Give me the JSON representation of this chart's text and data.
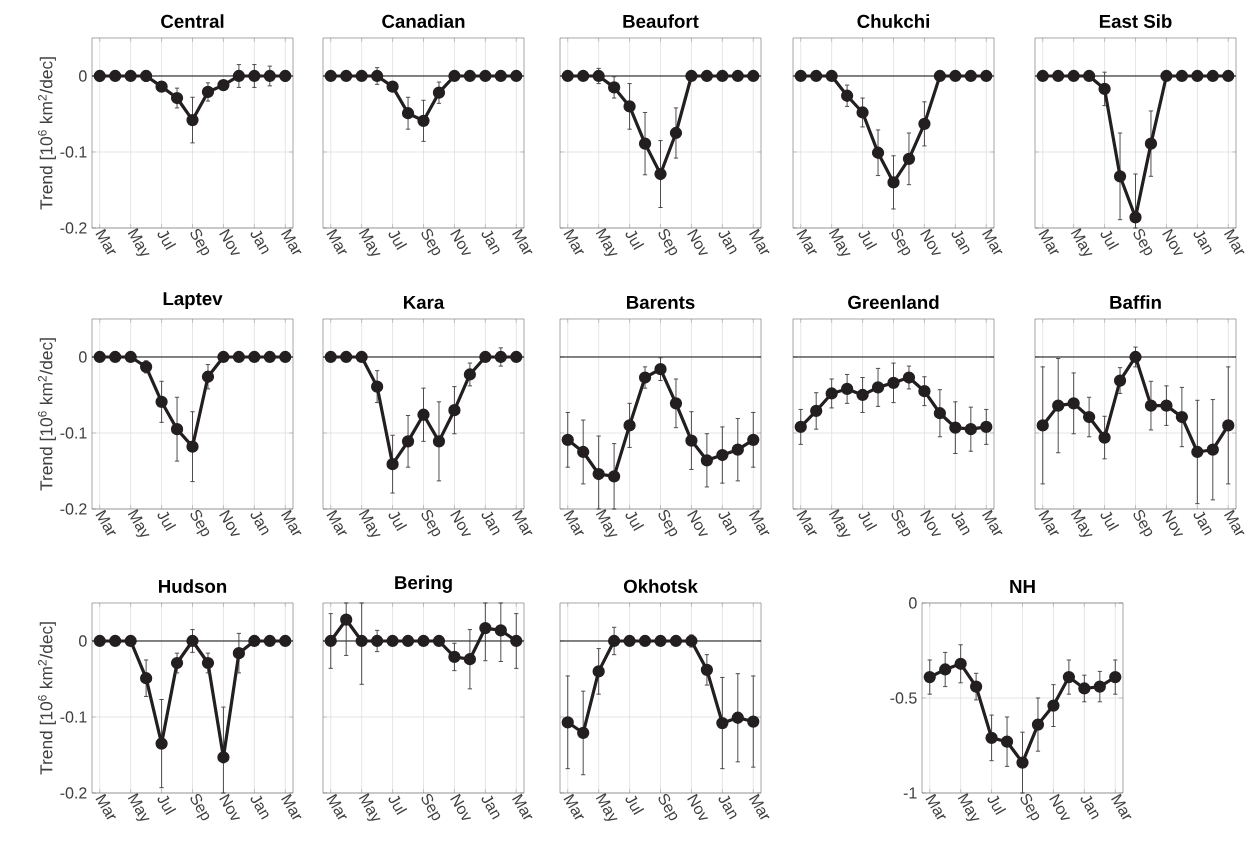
{
  "chart_data": [
    {
      "type": "line",
      "title": "Central",
      "ylabel": "Trend [10$^{6}$ km$^{2}$/dec]",
      "categories": [
        "Mar",
        null,
        "May",
        null,
        "Jul",
        null,
        "Sep",
        null,
        "Nov",
        null,
        "Jan",
        null,
        "Mar"
      ],
      "ylim": [
        -0.2,
        0.05
      ],
      "yticks": [
        -0.2,
        -0.1,
        0
      ],
      "grid": true,
      "marker": "circle",
      "line_style": "solid",
      "ref_lines": [
        {
          "axis": "y",
          "value": 0,
          "color": "#000000"
        }
      ],
      "series": [
        {
          "color": "#231f20",
          "values": [
            0,
            0,
            0,
            0,
            -0.014,
            -0.029,
            -0.058,
            -0.021,
            -0.012,
            0,
            0,
            0,
            0
          ],
          "errors": [
            0.007,
            null,
            null,
            0.007,
            null,
            0.013,
            0.03,
            0.012,
            null,
            0.015,
            0.015,
            0.013,
            0.007
          ]
        }
      ]
    },
    {
      "type": "line",
      "title": "Canadian",
      "categories": [
        "Mar",
        null,
        "May",
        null,
        "Jul",
        null,
        "Sep",
        null,
        "Nov",
        null,
        "Jan",
        null,
        "Mar"
      ],
      "ylim": [
        -0.2,
        0.05
      ],
      "yticks": [
        -0.2,
        -0.1,
        0
      ],
      "grid": true,
      "marker": "circle",
      "line_style": "solid",
      "tick_labels": "x",
      "ref_lines": [
        {
          "axis": "y",
          "value": 0,
          "color": "#000000"
        }
      ],
      "series": [
        {
          "color": "#231f20",
          "values": [
            0,
            0,
            0,
            0,
            -0.014,
            -0.049,
            -0.059,
            -0.022,
            0,
            0,
            0,
            0,
            0
          ],
          "errors": [
            null,
            null,
            null,
            0.011,
            0.006,
            0.021,
            0.027,
            0.014,
            null,
            null,
            null,
            null,
            null
          ]
        }
      ]
    },
    {
      "type": "line",
      "title": "Beaufort",
      "categories": [
        "Mar",
        null,
        "May",
        null,
        "Jul",
        null,
        "Sep",
        null,
        "Nov",
        null,
        "Jan",
        null,
        "Mar"
      ],
      "ylim": [
        -0.2,
        0.05
      ],
      "yticks": [
        -0.2,
        -0.1,
        0
      ],
      "grid": true,
      "marker": "circle",
      "line_style": "solid",
      "tick_labels": "x",
      "ref_lines": [
        {
          "axis": "y",
          "value": 0,
          "color": "#000000"
        }
      ],
      "series": [
        {
          "color": "#231f20",
          "values": [
            0,
            0,
            0,
            -0.015,
            -0.04,
            -0.089,
            -0.129,
            -0.075,
            0,
            0,
            0,
            0,
            0
          ],
          "errors": [
            null,
            null,
            0.01,
            0.014,
            0.03,
            0.041,
            0.044,
            0.033,
            null,
            null,
            null,
            null,
            null
          ]
        }
      ]
    },
    {
      "type": "line",
      "title": "Chukchi",
      "categories": [
        "Mar",
        null,
        "May",
        null,
        "Jul",
        null,
        "Sep",
        null,
        "Nov",
        null,
        "Jan",
        null,
        "Mar"
      ],
      "ylim": [
        -0.2,
        0.05
      ],
      "yticks": [
        -0.2,
        -0.1,
        0
      ],
      "grid": true,
      "marker": "circle",
      "line_style": "solid",
      "tick_labels": "x",
      "ref_lines": [
        {
          "axis": "y",
          "value": 0,
          "color": "#000000"
        }
      ],
      "series": [
        {
          "color": "#231f20",
          "values": [
            0,
            0,
            0,
            -0.026,
            -0.048,
            -0.101,
            -0.14,
            -0.109,
            -0.063,
            0,
            0,
            0,
            0
          ],
          "errors": [
            null,
            null,
            null,
            0.014,
            0.019,
            0.03,
            0.035,
            0.034,
            0.029,
            null,
            null,
            null,
            null
          ]
        }
      ]
    },
    {
      "type": "line",
      "title": "East Sib",
      "categories": [
        "Mar",
        null,
        "May",
        null,
        "Jul",
        null,
        "Sep",
        null,
        "Nov",
        null,
        "Jan",
        null,
        "Mar"
      ],
      "ylim": [
        -0.2,
        0.05
      ],
      "yticks": [
        -0.2,
        -0.1,
        0
      ],
      "grid": true,
      "marker": "circle",
      "line_style": "solid",
      "tick_labels": "x",
      "ref_lines": [
        {
          "axis": "y",
          "value": 0,
          "color": "#000000"
        }
      ],
      "series": [
        {
          "color": "#231f20",
          "values": [
            0,
            0,
            0,
            0,
            -0.017,
            -0.132,
            -0.186,
            -0.089,
            0,
            0,
            0,
            0,
            0
          ],
          "errors": [
            null,
            null,
            null,
            0.006,
            0.022,
            0.057,
            [
              -0.2,
              -0.129
            ],
            0.043,
            null,
            null,
            null,
            null,
            null
          ]
        }
      ]
    },
    {
      "type": "line",
      "title": "Laptev",
      "ylabel": "Trend [10$^{6}$ km$^{2}$/dec]",
      "categories": [
        "Mar",
        null,
        "May",
        null,
        "Jul",
        null,
        "Sep",
        null,
        "Nov",
        null,
        "Jan",
        null,
        "Mar"
      ],
      "ylim": [
        -0.2,
        0.05
      ],
      "yticks": [
        -0.2,
        -0.1,
        0
      ],
      "grid": true,
      "marker": "circle",
      "line_style": "solid",
      "ref_lines": [
        {
          "axis": "y",
          "value": 0,
          "color": "#000000"
        }
      ],
      "series": [
        {
          "color": "#231f20",
          "values": [
            0,
            0,
            0,
            -0.013,
            -0.059,
            -0.095,
            -0.118,
            -0.026,
            0,
            0,
            0,
            0,
            0
          ],
          "errors": [
            null,
            null,
            null,
            0.008,
            0.027,
            0.042,
            0.046,
            0.016,
            null,
            null,
            null,
            null,
            null
          ]
        }
      ]
    },
    {
      "type": "line",
      "title": "Kara",
      "categories": [
        "Mar",
        null,
        "May",
        null,
        "Jul",
        null,
        "Sep",
        null,
        "Nov",
        null,
        "Jan",
        null,
        "Mar"
      ],
      "ylim": [
        -0.2,
        0.05
      ],
      "yticks": [
        -0.2,
        -0.1,
        0
      ],
      "grid": true,
      "marker": "circle",
      "line_style": "solid",
      "tick_labels": "x",
      "ref_lines": [
        {
          "axis": "y",
          "value": 0,
          "color": "#000000"
        }
      ],
      "series": [
        {
          "color": "#231f20",
          "values": [
            0,
            0,
            0,
            -0.039,
            -0.141,
            -0.111,
            -0.076,
            -0.111,
            -0.07,
            -0.023,
            0,
            0,
            0
          ],
          "errors": [
            null,
            null,
            null,
            0.021,
            0.038,
            0.034,
            0.035,
            0.052,
            0.031,
            0.015,
            null,
            0.012,
            null
          ]
        }
      ]
    },
    {
      "type": "line",
      "title": "Barents",
      "categories": [
        "Mar",
        null,
        "May",
        null,
        "Jul",
        null,
        "Sep",
        null,
        "Nov",
        null,
        "Jan",
        null,
        "Mar"
      ],
      "ylim": [
        -0.2,
        0.05
      ],
      "yticks": [
        -0.2,
        -0.1,
        0
      ],
      "grid": true,
      "marker": "circle",
      "line_style": "solid",
      "tick_labels": "x",
      "ref_lines": [
        {
          "axis": "y",
          "value": 0,
          "color": "#000000"
        }
      ],
      "series": [
        {
          "color": "#231f20",
          "values": [
            -0.109,
            -0.125,
            -0.154,
            -0.157,
            -0.09,
            -0.027,
            -0.016,
            -0.061,
            -0.11,
            -0.136,
            -0.129,
            -0.122,
            -0.109
          ],
          "errors": [
            0.036,
            0.042,
            [
              -0.2,
              -0.104
            ],
            0.043,
            0.029,
            0.014,
            0.015,
            0.032,
            0.038,
            0.035,
            0.037,
            0.041,
            0.036
          ]
        }
      ]
    },
    {
      "type": "line",
      "title": "Greenland",
      "categories": [
        "Mar",
        null,
        "May",
        null,
        "Jul",
        null,
        "Sep",
        null,
        "Nov",
        null,
        "Jan",
        null,
        "Mar"
      ],
      "ylim": [
        -0.2,
        0.05
      ],
      "yticks": [
        -0.2,
        -0.1,
        0
      ],
      "grid": true,
      "marker": "circle",
      "line_style": "solid",
      "tick_labels": "x",
      "ref_lines": [
        {
          "axis": "y",
          "value": 0,
          "color": "#000000"
        }
      ],
      "series": [
        {
          "color": "#231f20",
          "values": [
            -0.092,
            -0.071,
            -0.048,
            -0.042,
            -0.05,
            -0.04,
            -0.034,
            -0.027,
            -0.045,
            -0.074,
            -0.093,
            -0.095,
            -0.092
          ],
          "errors": [
            0.023,
            0.024,
            0.019,
            0.019,
            0.023,
            0.025,
            0.026,
            0.015,
            0.019,
            0.031,
            0.034,
            0.029,
            0.023
          ]
        }
      ]
    },
    {
      "type": "line",
      "title": "Baffin",
      "categories": [
        "Mar",
        null,
        "May",
        null,
        "Jul",
        null,
        "Sep",
        null,
        "Nov",
        null,
        "Jan",
        null,
        "Mar"
      ],
      "ylim": [
        -0.2,
        0.05
      ],
      "yticks": [
        -0.2,
        -0.1,
        0
      ],
      "grid": true,
      "marker": "circle",
      "line_style": "solid",
      "tick_labels": "x",
      "ref_lines": [
        {
          "axis": "y",
          "value": 0,
          "color": "#000000"
        }
      ],
      "series": [
        {
          "color": "#231f20",
          "values": [
            -0.09,
            -0.064,
            -0.061,
            -0.079,
            -0.106,
            -0.031,
            0,
            -0.064,
            -0.064,
            -0.079,
            -0.125,
            -0.122,
            -0.09
          ],
          "errors": [
            0.077,
            0.062,
            0.04,
            0.026,
            0.028,
            0.017,
            0.013,
            0.032,
            0.026,
            0.039,
            0.068,
            0.066,
            0.077
          ]
        }
      ]
    },
    {
      "type": "line",
      "title": "Hudson",
      "ylabel": "Trend [10$^{6}$ km$^{2}$/dec]",
      "categories": [
        "Mar",
        null,
        "May",
        null,
        "Jul",
        null,
        "Sep",
        null,
        "Nov",
        null,
        "Jan",
        null,
        "Mar"
      ],
      "ylim": [
        -0.2,
        0.05
      ],
      "yticks": [
        -0.2,
        -0.1,
        0
      ],
      "grid": true,
      "marker": "circle",
      "line_style": "solid",
      "ref_lines": [
        {
          "axis": "y",
          "value": 0,
          "color": "#000000"
        }
      ],
      "series": [
        {
          "color": "#231f20",
          "values": [
            0,
            0,
            0,
            -0.049,
            -0.135,
            -0.029,
            0,
            -0.029,
            -0.153,
            -0.016,
            0,
            0,
            0
          ],
          "errors": [
            null,
            null,
            null,
            0.024,
            0.058,
            0.013,
            0.015,
            0.013,
            [
              -0.2,
              -0.087
            ],
            0.026,
            null,
            null,
            null
          ]
        }
      ]
    },
    {
      "type": "line",
      "title": "Bering",
      "categories": [
        "Mar",
        null,
        "May",
        null,
        "Jul",
        null,
        "Sep",
        null,
        "Nov",
        null,
        "Jan",
        null,
        "Mar"
      ],
      "ylim": [
        -0.2,
        0.05
      ],
      "yticks": [
        -0.2,
        -0.1,
        0
      ],
      "grid": true,
      "marker": "circle",
      "line_style": "solid",
      "tick_labels": "x",
      "ref_lines": [
        {
          "axis": "y",
          "value": 0,
          "color": "#000000"
        }
      ],
      "series": [
        {
          "color": "#231f20",
          "values": [
            0,
            0.028,
            0,
            0,
            0,
            0,
            0,
            0,
            -0.021,
            -0.024,
            0.017,
            0.014,
            0
          ],
          "errors": [
            0.036,
            [
              -0.019,
              0.05
            ],
            [
              -0.057,
              0.05
            ],
            0.014,
            null,
            null,
            null,
            null,
            0.018,
            0.039,
            [
              -0.026,
              0.05
            ],
            [
              -0.027,
              0.05
            ],
            0.036
          ]
        }
      ]
    },
    {
      "type": "line",
      "title": "Okhotsk",
      "categories": [
        "Mar",
        null,
        "May",
        null,
        "Jul",
        null,
        "Sep",
        null,
        "Nov",
        null,
        "Jan",
        null,
        "Mar"
      ],
      "ylim": [
        -0.2,
        0.05
      ],
      "yticks": [
        -0.2,
        -0.1,
        0
      ],
      "grid": true,
      "marker": "circle",
      "line_style": "solid",
      "tick_labels": "x",
      "ref_lines": [
        {
          "axis": "y",
          "value": 0,
          "color": "#000000"
        }
      ],
      "series": [
        {
          "color": "#231f20",
          "values": [
            -0.107,
            -0.121,
            -0.04,
            0,
            0,
            0,
            0,
            0,
            0,
            -0.038,
            -0.108,
            -0.101,
            -0.106
          ],
          "errors": [
            0.061,
            0.055,
            0.03,
            0.018,
            null,
            null,
            null,
            null,
            0.008,
            0.02,
            0.06,
            0.058,
            0.06
          ]
        }
      ]
    },
    {
      "type": "line",
      "title": "NH",
      "categories": [
        "Mar",
        null,
        "May",
        null,
        "Jul",
        null,
        "Sep",
        null,
        "Nov",
        null,
        "Jan",
        null,
        "Mar"
      ],
      "ylim": [
        -1,
        0
      ],
      "yticks": [
        -1,
        -0.5,
        0
      ],
      "grid": true,
      "marker": "circle",
      "line_style": "solid",
      "series": [
        {
          "color": "#231f20",
          "values": [
            -0.39,
            -0.35,
            -0.32,
            -0.44,
            -0.71,
            -0.73,
            -0.84,
            -0.64,
            -0.54,
            -0.39,
            -0.45,
            -0.44,
            -0.39
          ],
          "errors": [
            0.09,
            0.09,
            0.1,
            0.07,
            0.12,
            0.13,
            0.16,
            0.14,
            0.11,
            0.09,
            0.07,
            0.08,
            0.09
          ]
        }
      ]
    }
  ]
}
